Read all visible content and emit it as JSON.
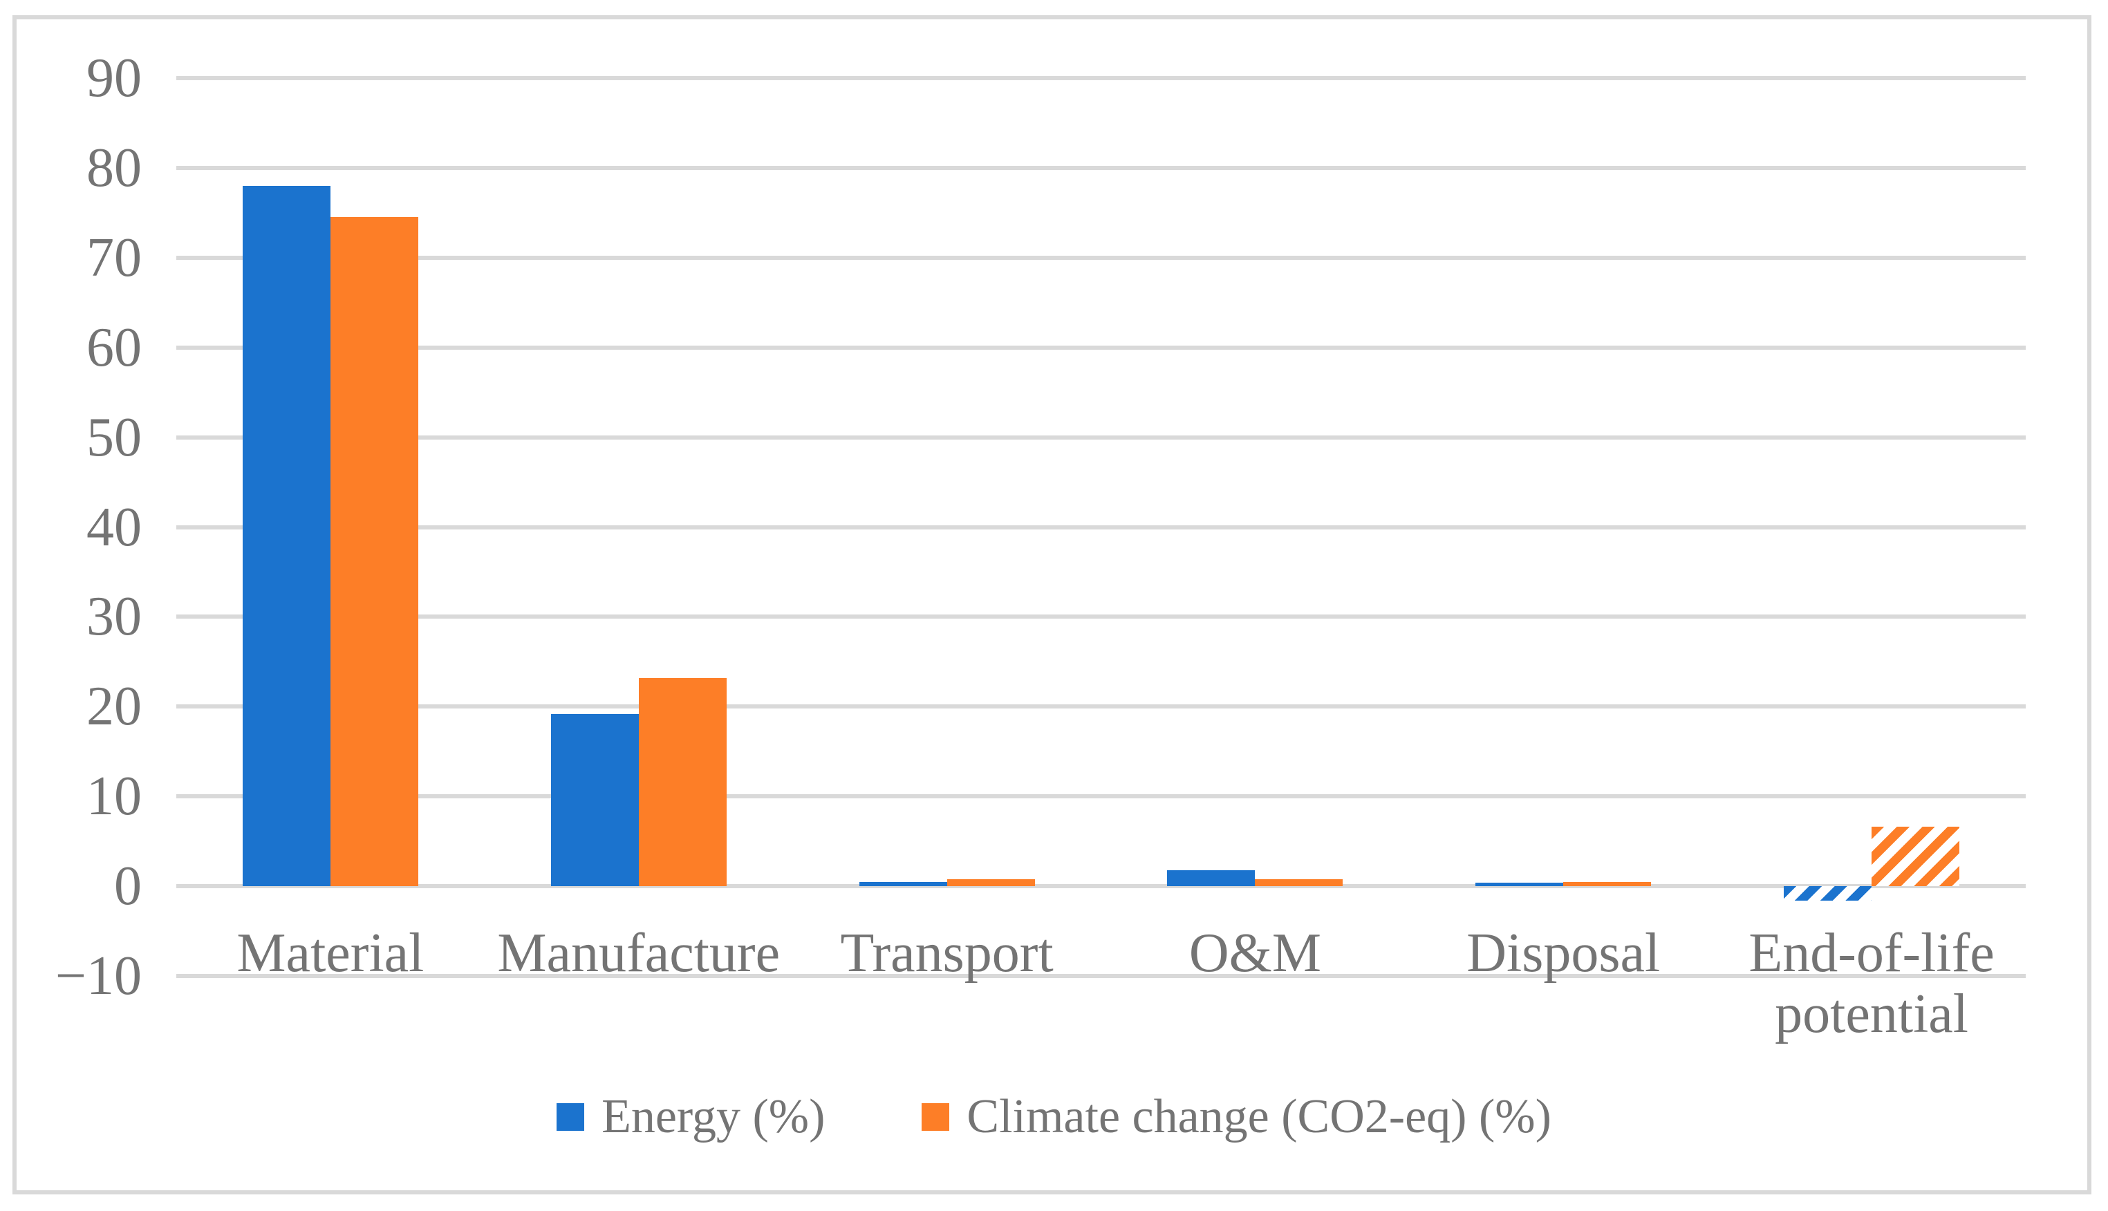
{
  "figure": {
    "background_color": "#ffffff",
    "border_color": "#d9d9d9",
    "gridline_color": "#d9d9d9",
    "text_color": "#747474"
  },
  "chart_data": {
    "type": "bar",
    "title": "",
    "xlabel": "",
    "ylabel": "",
    "categories": [
      "Material",
      "Manufacture",
      "Transport",
      "O&M",
      "Disposal",
      "End-of-life potential"
    ],
    "series": [
      {
        "name": "Energy (%)",
        "color": "#1b73ce",
        "values": [
          78,
          19.2,
          0.5,
          1.8,
          0.4,
          -1.6
        ]
      },
      {
        "name": "Climate change (CO2-eq) (%)",
        "color": "#fd7e27",
        "values": [
          74.5,
          23.2,
          0.8,
          0.8,
          0.5,
          6.6
        ]
      }
    ],
    "hatched_categories": [
      "End-of-life potential"
    ],
    "hatch_style": "diagonal-stripes",
    "ylim": [
      -10,
      90
    ],
    "yticks": [
      90,
      80,
      70,
      60,
      50,
      40,
      30,
      20,
      10,
      0,
      -10
    ],
    "grid": true,
    "legend_position": "bottom-center"
  }
}
